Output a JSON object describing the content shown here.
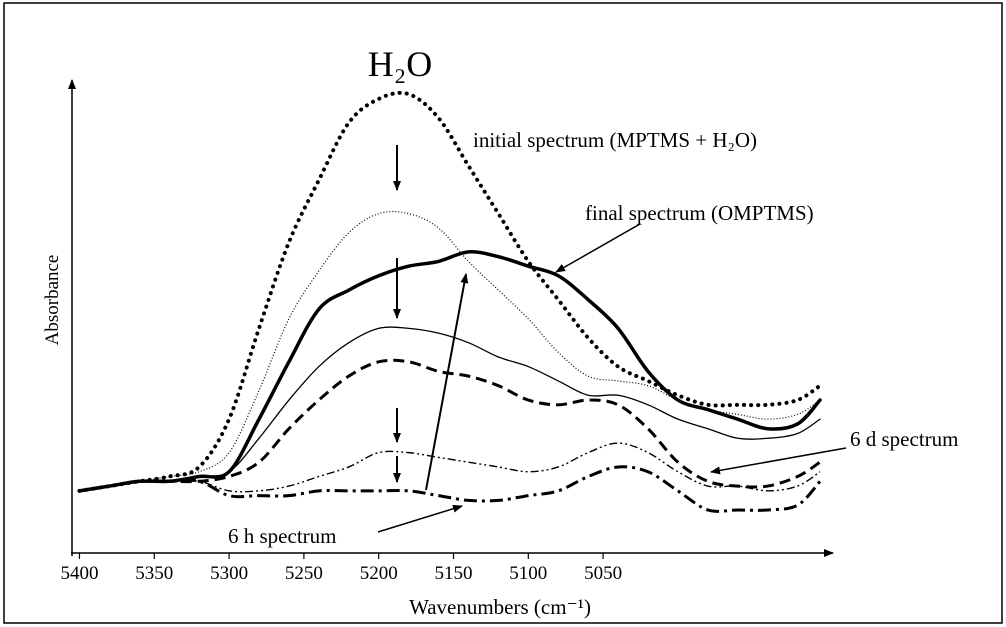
{
  "chart_data": {
    "type": "line",
    "title": "H₂O",
    "xlabel": "Wavenumbers (cm⁻¹)",
    "ylabel": "Absorbance",
    "x": [
      5400,
      5380,
      5360,
      5340,
      5320,
      5300,
      5280,
      5260,
      5240,
      5220,
      5200,
      5180,
      5160,
      5140,
      5120,
      5100,
      5080,
      5060,
      5040,
      5020,
      5000,
      4980,
      4960,
      4940,
      4920,
      4905
    ],
    "xlim": [
      5405,
      4895
    ],
    "xticks": [
      5400,
      5350,
      5300,
      5250,
      5200,
      5150,
      5100,
      5050
    ],
    "ylim": [
      0,
      1
    ],
    "series": [
      {
        "color": "#000000",
        "line_style": "thick-dotted",
        "values": [
          0.13,
          0.14,
          0.15,
          0.16,
          0.18,
          0.28,
          0.47,
          0.65,
          0.78,
          0.9,
          0.95,
          0.96,
          0.91,
          0.81,
          0.71,
          0.61,
          0.53,
          0.45,
          0.39,
          0.36,
          0.33,
          0.31,
          0.31,
          0.31,
          0.32,
          0.35
        ]
      },
      {
        "color": "#000000",
        "line_style": "thin-dotted",
        "values": [
          0.13,
          0.14,
          0.15,
          0.16,
          0.17,
          0.21,
          0.34,
          0.49,
          0.59,
          0.67,
          0.71,
          0.71,
          0.68,
          0.61,
          0.55,
          0.49,
          0.42,
          0.37,
          0.36,
          0.35,
          0.32,
          0.3,
          0.29,
          0.28,
          0.29,
          0.32
        ]
      },
      {
        "color": "#000000",
        "line_style": "thick-solid",
        "values": [
          0.13,
          0.14,
          0.15,
          0.15,
          0.16,
          0.17,
          0.28,
          0.4,
          0.51,
          0.55,
          0.58,
          0.6,
          0.61,
          0.63,
          0.62,
          0.6,
          0.58,
          0.53,
          0.47,
          0.38,
          0.32,
          0.3,
          0.28,
          0.26,
          0.27,
          0.32
        ]
      },
      {
        "color": "#000000",
        "line_style": "thin-solid",
        "values": [
          0.13,
          0.14,
          0.15,
          0.15,
          0.16,
          0.17,
          0.24,
          0.32,
          0.39,
          0.44,
          0.47,
          0.47,
          0.46,
          0.44,
          0.41,
          0.39,
          0.36,
          0.33,
          0.33,
          0.31,
          0.28,
          0.26,
          0.24,
          0.24,
          0.25,
          0.28
        ]
      },
      {
        "color": "#000000",
        "line_style": "dashed",
        "values": [
          0.13,
          0.14,
          0.15,
          0.15,
          0.15,
          0.16,
          0.19,
          0.26,
          0.32,
          0.37,
          0.4,
          0.4,
          0.38,
          0.37,
          0.35,
          0.32,
          0.31,
          0.32,
          0.31,
          0.26,
          0.19,
          0.15,
          0.14,
          0.14,
          0.16,
          0.19
        ]
      },
      {
        "color": "#000000",
        "line_style": "dash-dot-dot",
        "values": [
          0.13,
          0.14,
          0.15,
          0.15,
          0.15,
          0.13,
          0.13,
          0.14,
          0.16,
          0.18,
          0.21,
          0.21,
          0.2,
          0.19,
          0.18,
          0.17,
          0.18,
          0.21,
          0.23,
          0.21,
          0.17,
          0.14,
          0.14,
          0.13,
          0.14,
          0.17
        ]
      },
      {
        "color": "#000000",
        "line_style": "dash-dot",
        "values": [
          0.13,
          0.14,
          0.15,
          0.15,
          0.15,
          0.12,
          0.12,
          0.12,
          0.13,
          0.13,
          0.13,
          0.13,
          0.12,
          0.11,
          0.11,
          0.12,
          0.13,
          0.16,
          0.18,
          0.17,
          0.13,
          0.09,
          0.09,
          0.09,
          0.1,
          0.15
        ]
      }
    ],
    "annotations": [
      "initial spectrum (MPTMS + H₂O)",
      "final spectrum (OMPTMS)",
      "6 d spectrum",
      "6 h spectrum"
    ]
  }
}
